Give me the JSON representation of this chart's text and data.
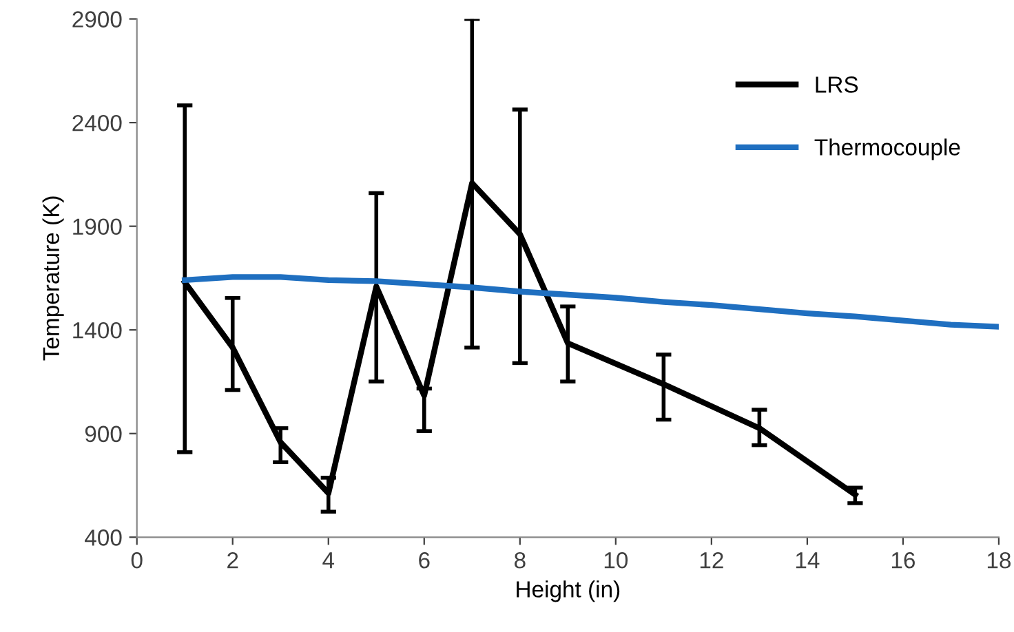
{
  "chart_data": {
    "type": "line",
    "xlabel": "Height (in)",
    "ylabel": "Temperature (K)",
    "xlim": [
      0,
      18
    ],
    "xticks": [
      0,
      2,
      4,
      6,
      8,
      10,
      12,
      14,
      16,
      18
    ],
    "ylim": [
      400,
      2900
    ],
    "yticks": [
      400,
      900,
      1400,
      1900,
      2400,
      2900
    ],
    "grid": false,
    "legend": "top right",
    "marker": "none",
    "line_style": "solid",
    "series": [
      {
        "name": "LRS",
        "color": "#000000",
        "x": [
          1,
          2,
          3,
          4,
          5,
          6,
          7,
          8,
          9,
          11,
          13,
          15
        ],
        "values": [
          1630,
          1315,
          858,
          612,
          1609,
          1083,
          2108,
          1862,
          1336,
          1138,
          926,
          605
        ],
        "errors": [
          [
            810,
            2483
          ],
          [
            1110,
            1554
          ],
          [
            762,
            926
          ],
          [
            523,
            687
          ],
          [
            1151,
            2060
          ],
          [
            912,
            1117
          ],
          [
            1315,
            2900
          ],
          [
            1240,
            2463
          ],
          [
            1151,
            1513
          ],
          [
            967,
            1281
          ],
          [
            844,
            1015
          ],
          [
            564,
            639
          ]
        ]
      },
      {
        "name": "Thermocouple",
        "color": "#1f6fc0",
        "x": [
          1,
          2,
          3,
          4,
          5,
          6,
          7,
          8,
          9,
          10,
          11,
          12,
          13,
          14,
          15,
          16,
          17,
          18
        ],
        "values": [
          1640,
          1655,
          1655,
          1640,
          1635,
          1620,
          1605,
          1585,
          1570,
          1555,
          1535,
          1520,
          1500,
          1480,
          1465,
          1445,
          1425,
          1415
        ]
      }
    ]
  }
}
